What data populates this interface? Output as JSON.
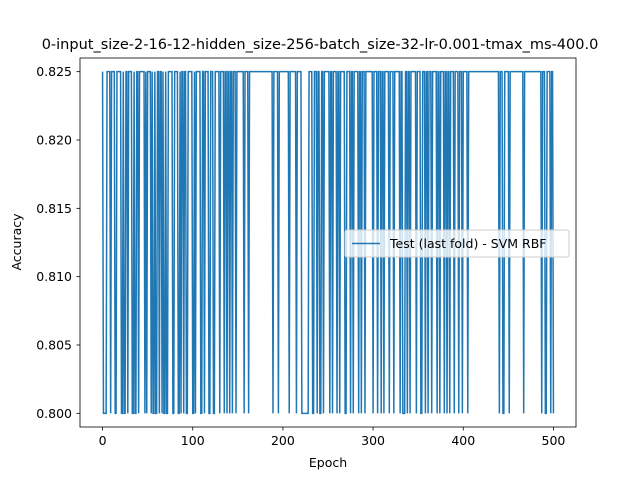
{
  "chart_data": {
    "type": "line",
    "title": "0-input_size-2-16-12-hidden_size-256-batch_size-32-lr-0.001-tmax_ms-400.0",
    "xlabel": "Epoch",
    "ylabel": "Accuracy",
    "xlim": [
      -25,
      525
    ],
    "ylim": [
      0.799,
      0.826
    ],
    "xticks": [
      0,
      100,
      200,
      300,
      400,
      500
    ],
    "yticks": [
      0.8,
      0.805,
      0.81,
      0.815,
      0.82,
      0.825
    ],
    "xtick_labels": [
      "0",
      "100",
      "200",
      "300",
      "400",
      "500"
    ],
    "ytick_labels": [
      "0.800",
      "0.805",
      "0.810",
      "0.815",
      "0.820",
      "0.825"
    ],
    "grid": false,
    "legend_placement": "center-right",
    "series": [
      {
        "name": "Test (last fold) - SVM RBF",
        "color": "#1f77b4",
        "low_value": 0.8,
        "high_value": 0.825,
        "x_start": 0,
        "x_end": 500,
        "high_epochs": [
          0,
          5,
          6,
          7,
          8,
          10,
          11,
          12,
          13,
          16,
          17,
          18,
          19,
          20,
          23,
          26,
          27,
          29,
          30,
          31,
          32,
          35,
          38,
          39,
          41,
          42,
          43,
          44,
          45,
          46,
          48,
          50,
          51,
          52,
          53,
          55,
          58,
          61,
          62,
          64,
          65,
          67,
          70,
          73,
          74,
          75,
          76,
          77,
          80,
          81,
          82,
          83,
          86,
          88,
          89,
          91,
          92,
          95,
          96,
          97,
          98,
          99,
          102,
          104,
          105,
          106,
          107,
          108,
          111,
          112,
          114,
          115,
          116,
          117,
          120,
          121,
          122,
          125,
          126,
          127,
          128,
          129,
          131,
          132,
          133,
          134,
          136,
          137,
          139,
          140,
          142,
          143,
          145,
          146,
          147,
          149,
          150,
          151,
          152,
          153,
          154,
          155,
          156,
          158,
          159,
          160,
          161,
          163,
          164,
          165,
          166,
          167,
          168,
          169,
          170,
          171,
          172,
          173,
          174,
          175,
          176,
          177,
          178,
          179,
          180,
          181,
          182,
          183,
          184,
          185,
          186,
          187,
          188,
          190,
          191,
          192,
          193,
          194,
          196,
          197,
          198,
          199,
          200,
          201,
          202,
          203,
          204,
          205,
          206,
          208,
          209,
          210,
          211,
          212,
          213,
          214,
          216,
          217,
          218,
          219,
          220,
          229,
          230,
          231,
          232,
          235,
          236,
          237,
          239,
          240,
          243,
          244,
          246,
          247,
          248,
          249,
          250,
          251,
          253,
          254,
          256,
          257,
          258,
          259,
          261,
          262,
          264,
          265,
          266,
          267,
          268,
          271,
          272,
          273,
          274,
          276,
          277,
          279,
          280,
          281,
          282,
          283,
          285,
          286,
          288,
          289,
          290,
          292,
          293,
          294,
          295,
          296,
          297,
          298,
          299,
          301,
          302,
          303,
          304,
          306,
          307,
          308,
          310,
          311,
          313,
          314,
          315,
          316,
          317,
          319,
          320,
          321,
          322,
          324,
          325,
          326,
          327,
          328,
          329,
          331,
          332,
          336,
          337,
          339,
          340,
          342,
          343,
          344,
          345,
          346,
          347,
          349,
          350,
          351,
          352,
          355,
          356,
          357,
          359,
          360,
          362,
          363,
          364,
          366,
          367,
          368,
          369,
          370,
          372,
          373,
          375,
          376,
          377,
          378,
          380,
          381,
          383,
          384,
          386,
          387,
          388,
          389,
          391,
          392,
          393,
          394,
          396,
          397,
          398,
          400,
          401,
          402,
          403,
          404,
          406,
          407,
          408,
          409,
          410,
          411,
          412,
          413,
          414,
          415,
          416,
          417,
          418,
          419,
          420,
          421,
          422,
          423,
          424,
          425,
          426,
          427,
          428,
          429,
          430,
          431,
          432,
          433,
          434,
          435,
          436,
          437,
          438,
          439,
          441,
          442,
          443,
          446,
          447,
          448,
          449,
          450,
          452,
          453,
          454,
          455,
          456,
          457,
          458,
          459,
          460,
          461,
          462,
          463,
          464,
          465,
          466,
          468,
          469,
          470,
          471,
          472,
          473,
          474,
          475,
          476,
          477,
          478,
          479,
          480,
          481,
          482,
          483,
          484,
          485,
          486,
          488,
          489,
          490,
          493,
          494,
          495,
          496,
          498,
          499
        ]
      }
    ]
  }
}
